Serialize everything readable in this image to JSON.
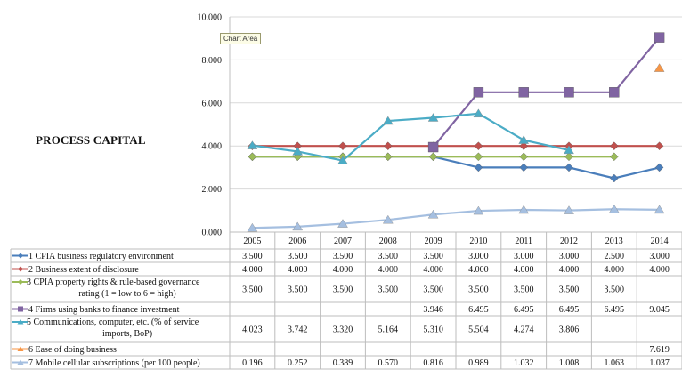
{
  "page": {
    "side_title": "PROCESS CAPITAL",
    "tooltip": "Chart Area"
  },
  "chart_data": {
    "type": "line",
    "x": [
      "2005",
      "2006",
      "2007",
      "2008",
      "2009",
      "2010",
      "2011",
      "2012",
      "2013",
      "2014"
    ],
    "ylim": [
      0,
      10
    ],
    "y_ticks": [
      "0.000",
      "2.000",
      "4.000",
      "6.000",
      "8.000",
      "10.000"
    ],
    "y_tick_values": [
      0,
      2,
      4,
      6,
      8,
      10
    ],
    "grid": true,
    "legend": "data-table",
    "series": [
      {
        "name": "1 CPIA business regulatory environment",
        "label_lines": [
          "1 CPIA business regulatory environment"
        ],
        "color": "#4a7ebb",
        "marker": "diamond",
        "values": [
          3.5,
          3.5,
          3.5,
          3.5,
          3.5,
          3.0,
          3.0,
          3.0,
          2.5,
          3.0
        ],
        "display": [
          "3.500",
          "3.500",
          "3.500",
          "3.500",
          "3.500",
          "3.000",
          "3.000",
          "3.000",
          "2.500",
          "3.000"
        ]
      },
      {
        "name": "2 Business extent of disclosure",
        "label_lines": [
          "2 Business extent of disclosure"
        ],
        "color": "#c0504d",
        "marker": "diamond",
        "values": [
          4,
          4,
          4,
          4,
          4,
          4,
          4,
          4,
          4,
          4
        ],
        "display": [
          "4.000",
          "4.000",
          "4.000",
          "4.000",
          "4.000",
          "4.000",
          "4.000",
          "4.000",
          "4.000",
          "4.000"
        ]
      },
      {
        "name": "3 CPIA property rights & rule-based governance rating (1 = low to 6 = high)",
        "label_lines": [
          "3 CPIA property rights & rule-based governance",
          "rating (1 = low to 6 = high)"
        ],
        "color": "#9bbb59",
        "marker": "diamond",
        "values": [
          3.5,
          3.5,
          3.5,
          3.5,
          3.5,
          3.5,
          3.5,
          3.5,
          3.5,
          null
        ],
        "display": [
          "3.500",
          "3.500",
          "3.500",
          "3.500",
          "3.500",
          "3.500",
          "3.500",
          "3.500",
          "3.500",
          ""
        ]
      },
      {
        "name": "4 Firms using banks to finance investment",
        "label_lines": [
          "4 Firms using banks to finance investment"
        ],
        "color": "#8064a2",
        "marker": "square",
        "values": [
          null,
          null,
          null,
          null,
          3.946,
          6.495,
          6.495,
          6.495,
          6.495,
          9.045
        ],
        "display": [
          "",
          "",
          "",
          "",
          "3.946",
          "6.495",
          "6.495",
          "6.495",
          "6.495",
          "9.045"
        ]
      },
      {
        "name": "5 Communications, computer, etc. (% of service imports, BoP)",
        "label_lines": [
          "5 Communications, computer, etc. (% of service",
          "imports, BoP)"
        ],
        "color": "#4bacc6",
        "marker": "triangle",
        "values": [
          4.023,
          3.742,
          3.32,
          5.164,
          5.31,
          5.504,
          4.274,
          3.806,
          null,
          null
        ],
        "display": [
          "4.023",
          "3.742",
          "3.320",
          "5.164",
          "5.310",
          "5.504",
          "4.274",
          "3.806",
          "",
          ""
        ]
      },
      {
        "name": "6 Ease of doing business",
        "label_lines": [
          "6 Ease of doing business"
        ],
        "color": "#f79646",
        "marker": "triangle",
        "values": [
          null,
          null,
          null,
          null,
          null,
          null,
          null,
          null,
          null,
          7.619
        ],
        "display": [
          "",
          "",
          "",
          "",
          "",
          "",
          "",
          "",
          "",
          "7.619"
        ]
      },
      {
        "name": "7 Mobile cellular subscriptions (per 100 people)",
        "label_lines": [
          "7 Mobile cellular subscriptions (per 100 people)"
        ],
        "color": "#a5bfe0",
        "marker": "triangle",
        "values": [
          0.196,
          0.252,
          0.389,
          0.57,
          0.816,
          0.989,
          1.032,
          1.008,
          1.063,
          1.037
        ],
        "display": [
          "0.196",
          "0.252",
          "0.389",
          "0.570",
          "0.816",
          "0.989",
          "1.032",
          "1.008",
          "1.063",
          "1.037"
        ]
      }
    ]
  }
}
